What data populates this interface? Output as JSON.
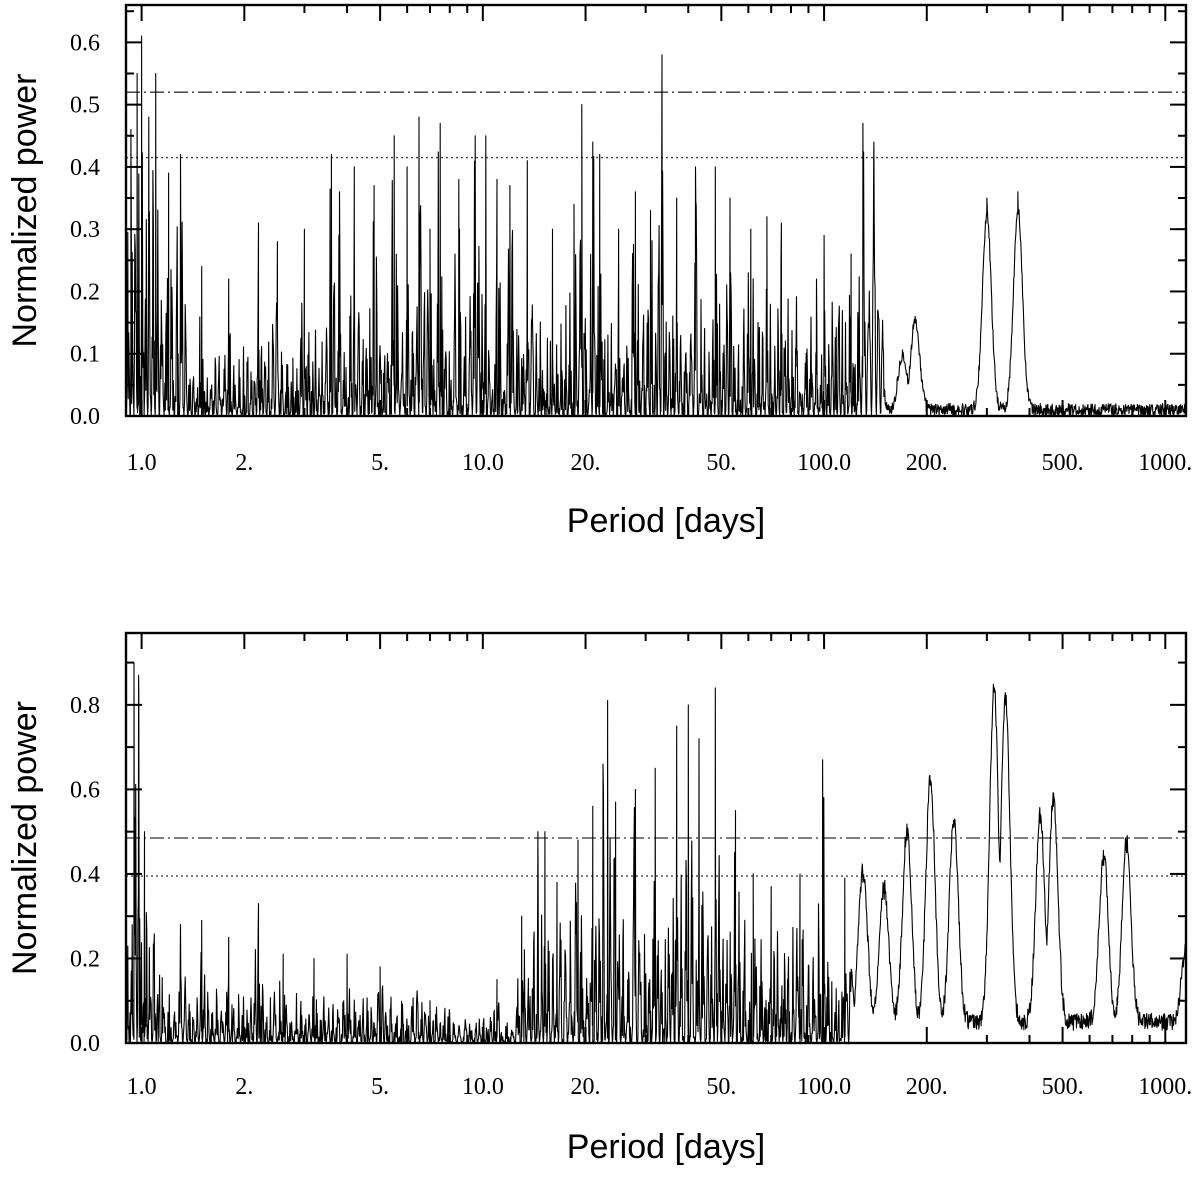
{
  "chart_data": [
    {
      "type": "line",
      "title": "",
      "xlabel": "Period [days]",
      "ylabel": "Normalized power",
      "xscale": "log",
      "xlim": [
        0.9,
        1150
      ],
      "ylim": [
        0.0,
        0.66
      ],
      "xticks": [
        1,
        2,
        5,
        10,
        20,
        50,
        100,
        200,
        500,
        1000
      ],
      "xtick_labels": [
        "1.0",
        "2.",
        "5.",
        "10.0",
        "20.",
        "50.",
        "100.0",
        "200.",
        "500.",
        "1000."
      ],
      "yticks": [
        0.0,
        0.1,
        0.2,
        0.3,
        0.4,
        0.5,
        0.6
      ],
      "ytick_labels": [
        "0.0",
        "0.1",
        "0.2",
        "0.3",
        "0.4",
        "0.5",
        "0.6"
      ],
      "thresholds": [
        {
          "style": "dash-dot",
          "y": 0.52
        },
        {
          "style": "dotted",
          "y": 0.415
        }
      ],
      "series": [
        {
          "peaks": [
            [
              0.93,
              0.46
            ],
            [
              0.97,
              0.55
            ],
            [
              1.0,
              0.61
            ],
            [
              1.05,
              0.48
            ],
            [
              1.1,
              0.55
            ],
            [
              1.2,
              0.39
            ],
            [
              1.3,
              0.42
            ],
            [
              1.5,
              0.24
            ],
            [
              1.8,
              0.22
            ],
            [
              2.2,
              0.31
            ],
            [
              2.5,
              0.28
            ],
            [
              3.0,
              0.3
            ],
            [
              3.6,
              0.42
            ],
            [
              3.8,
              0.36
            ],
            [
              4.2,
              0.4
            ],
            [
              4.8,
              0.37
            ],
            [
              5.5,
              0.45
            ],
            [
              6.0,
              0.4
            ],
            [
              6.5,
              0.48
            ],
            [
              7.0,
              0.3
            ],
            [
              7.5,
              0.47
            ],
            [
              8.5,
              0.38
            ],
            [
              9.5,
              0.45
            ],
            [
              10.2,
              0.45
            ],
            [
              11.0,
              0.38
            ],
            [
              12.0,
              0.37
            ],
            [
              13.5,
              0.41
            ],
            [
              16.0,
              0.3
            ],
            [
              18.5,
              0.34
            ],
            [
              19.5,
              0.5
            ],
            [
              21.0,
              0.44
            ],
            [
              22.0,
              0.42
            ],
            [
              25.0,
              0.3
            ],
            [
              28.0,
              0.36
            ],
            [
              31.0,
              0.33
            ],
            [
              33.5,
              0.58
            ],
            [
              37.0,
              0.35
            ],
            [
              42.0,
              0.4
            ],
            [
              48.0,
              0.4
            ],
            [
              53.0,
              0.35
            ],
            [
              61.0,
              0.3
            ],
            [
              68.0,
              0.32
            ],
            [
              75.0,
              0.31
            ],
            [
              95.0,
              0.22
            ],
            [
              100.0,
              0.29
            ],
            [
              120.0,
              0.26
            ],
            [
              130.0,
              0.47
            ],
            [
              140.0,
              0.44
            ],
            [
              170.0,
              0.1
            ],
            [
              185.0,
              0.16
            ],
            [
              300.0,
              0.35
            ],
            [
              370.0,
              0.36
            ]
          ]
        }
      ]
    },
    {
      "type": "line",
      "title": "",
      "xlabel": "Period [days]",
      "ylabel": "Normalized power",
      "xscale": "log",
      "xlim": [
        0.9,
        1150
      ],
      "ylim": [
        0.0,
        0.97
      ],
      "xticks": [
        1,
        2,
        5,
        10,
        20,
        50,
        100,
        200,
        500,
        1000
      ],
      "xtick_labels": [
        "1.0",
        "2.",
        "5.",
        "10.0",
        "20.",
        "50.",
        "100.0",
        "200.",
        "500.",
        "1000."
      ],
      "yticks": [
        0.0,
        0.2,
        0.4,
        0.6,
        0.8
      ],
      "ytick_labels": [
        "0.0",
        "0.2",
        "0.4",
        "0.6",
        "0.8"
      ],
      "thresholds": [
        {
          "style": "dash-dot",
          "y": 0.485
        },
        {
          "style": "dotted",
          "y": 0.395
        }
      ],
      "series": [
        {
          "peaks": [
            [
              0.95,
              0.9
            ],
            [
              0.98,
              0.87
            ],
            [
              1.02,
              0.5
            ],
            [
              1.3,
              0.28
            ],
            [
              1.5,
              0.29
            ],
            [
              1.8,
              0.25
            ],
            [
              2.2,
              0.33
            ],
            [
              2.6,
              0.21
            ],
            [
              3.2,
              0.2
            ],
            [
              4.0,
              0.21
            ],
            [
              5.0,
              0.18
            ],
            [
              7.0,
              0.1
            ],
            [
              11.0,
              0.15
            ],
            [
              13.0,
              0.3
            ],
            [
              14.5,
              0.5
            ],
            [
              15.2,
              0.5
            ],
            [
              16.5,
              0.38
            ],
            [
              19.0,
              0.48
            ],
            [
              21.0,
              0.56
            ],
            [
              22.5,
              0.66
            ],
            [
              23.2,
              0.81
            ],
            [
              24.5,
              0.57
            ],
            [
              28.0,
              0.6
            ],
            [
              32.0,
              0.65
            ],
            [
              37.0,
              0.75
            ],
            [
              40.0,
              0.8
            ],
            [
              43.0,
              0.72
            ],
            [
              48.0,
              0.84
            ],
            [
              55.0,
              0.55
            ],
            [
              62.0,
              0.4
            ],
            [
              70.0,
              0.37
            ],
            [
              85.0,
              0.4
            ],
            [
              99.0,
              0.67
            ],
            [
              115.0,
              0.39
            ],
            [
              130.0,
              0.38
            ],
            [
              150.0,
              0.34
            ],
            [
              175.0,
              0.48
            ],
            [
              205.0,
              0.61
            ],
            [
              240.0,
              0.51
            ],
            [
              315.0,
              0.83
            ],
            [
              340.0,
              0.81
            ],
            [
              430.0,
              0.52
            ],
            [
              470.0,
              0.56
            ],
            [
              660.0,
              0.42
            ],
            [
              770.0,
              0.45
            ],
            [
              1150.0,
              0.18
            ]
          ]
        }
      ]
    }
  ]
}
